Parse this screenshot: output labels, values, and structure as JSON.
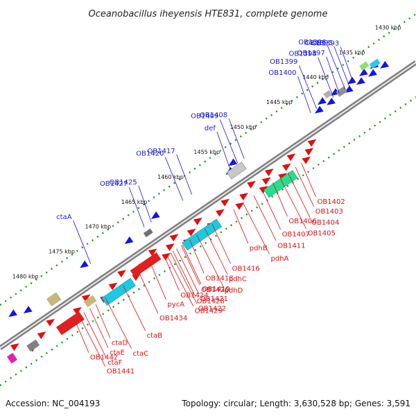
{
  "title": "Oceanobacillus iheyensis HTE831, complete genome",
  "footer": {
    "accession": "Accession: NC_004193",
    "summary": "Topology: circular; Length: 3,630,528 bp; Genes: 3,591"
  },
  "kbp_ticks": [
    {
      "label": "1430 kbp",
      "t": 6
    },
    {
      "label": "1435 kbp",
      "t": 67
    },
    {
      "label": "1440 kbp",
      "t": 128
    },
    {
      "label": "1445 kbp",
      "t": 189
    },
    {
      "label": "1450 kbp",
      "t": 250
    },
    {
      "label": "1455 kbp",
      "t": 311
    },
    {
      "label": "1460 kbp",
      "t": 372
    },
    {
      "label": "1465 kbp",
      "t": 433
    },
    {
      "label": "1470 kbp",
      "t": 494
    },
    {
      "label": "1475 kbp",
      "t": 555
    },
    {
      "label": "1480 kbp",
      "t": 616
    }
  ],
  "colors": {
    "forward_strand": "#e01010",
    "reverse_strand": "#1414e0",
    "cds_band": "#1ec8e0",
    "rrna_band": "#22e08c",
    "olive": "#c8b878",
    "grey": "#8c8c8c",
    "backbone": "#808080",
    "tick_green": "#1e8c1e"
  },
  "blue_labels": [
    {
      "text": "OB1393",
      "t": 88
    },
    {
      "text": "OB1395",
      "t": 95
    },
    {
      "text": "OB1396",
      "t": 102
    },
    {
      "text": "OB1397",
      "t": 112
    },
    {
      "text": "OB1398",
      "t": 122
    },
    {
      "text": "OB1399",
      "t": 150
    },
    {
      "text": "OB1400",
      "t": 160
    },
    {
      "text": "OB1408",
      "t": 272
    },
    {
      "text": "OB1409",
      "t": 283
    },
    {
      "text": "def",
      "t": 296
    },
    {
      "text": "OB1417",
      "t": 360
    },
    {
      "text": "OB1420",
      "t": 375
    },
    {
      "text": "OB1425",
      "t": 428
    },
    {
      "text": "OB1427",
      "t": 440
    },
    {
      "text": "ctaA",
      "t": 530
    }
  ],
  "red_labels": [
    {
      "text": "OB1402",
      "t": 210
    },
    {
      "text": "OB1403",
      "t": 220
    },
    {
      "text": "OB1404",
      "t": 233
    },
    {
      "text": "OB1405",
      "t": 246
    },
    {
      "text": "OB1406",
      "t": 258
    },
    {
      "text": "OB1407",
      "t": 276
    },
    {
      "text": "OB1411",
      "t": 290
    },
    {
      "text": "pdhA",
      "t": 308
    },
    {
      "text": "pdhB",
      "t": 324
    },
    {
      "text": "OB1416",
      "t": 360
    },
    {
      "text": "pdhC",
      "t": 372
    },
    {
      "text": "pdhD",
      "t": 386
    },
    {
      "text": "OB1418",
      "t": 398
    },
    {
      "text": "OB1419",
      "t": 410
    },
    {
      "text": "OB1421",
      "t": 420
    },
    {
      "text": "OB1422",
      "t": 430
    },
    {
      "text": "OB1424",
      "t": 440
    },
    {
      "text": "OB1426",
      "t": 412
    },
    {
      "text": "OB1428",
      "t": 426
    },
    {
      "text": "OB1429",
      "t": 436
    },
    {
      "text": "pycA",
      "t": 462
    },
    {
      "text": "OB1434",
      "t": 482
    },
    {
      "text": "ctaB",
      "t": 510
    },
    {
      "text": "ctaC",
      "t": 540
    },
    {
      "text": "ctaD",
      "t": 556
    },
    {
      "text": "ctaE",
      "t": 566
    },
    {
      "text": "ctaF",
      "t": 576
    },
    {
      "text": "OB1441",
      "t": 584
    },
    {
      "text": "OB1442",
      "t": 592
    }
  ]
}
